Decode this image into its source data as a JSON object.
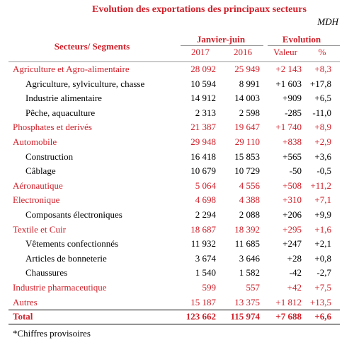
{
  "header": {
    "title": "Evolution des exportations des principaux secteurs",
    "unit": "MDH",
    "sector_label": "Secteurs/ Segments",
    "period": "Janvier-juin",
    "evolution": "Evolution",
    "columns": [
      "2017",
      "2016",
      "Valeur",
      "%"
    ]
  },
  "table": {
    "rows": [
      {
        "kind": "sector",
        "cells": [
          "Agriculture et Agro-alimentaire",
          "28 092",
          "25 949",
          "+2 143",
          "+8,3"
        ]
      },
      {
        "kind": "segment",
        "cells": [
          "Agriculture, sylviculture, chasse",
          "10 594",
          "8 991",
          "+1 603",
          "+17,8"
        ]
      },
      {
        "kind": "segment",
        "cells": [
          "Industrie alimentaire",
          "14 912",
          "14 003",
          "+909",
          "+6,5"
        ]
      },
      {
        "kind": "segment",
        "cells": [
          "Pêche, aquaculture",
          "2 313",
          "2 598",
          "-285",
          "-11,0"
        ]
      },
      {
        "kind": "sector",
        "cells": [
          "Phosphates et derivés",
          "21 387",
          "19 647",
          "+1 740",
          "+8,9"
        ]
      },
      {
        "kind": "sector",
        "cells": [
          "Automobile",
          "29 948",
          "29 110",
          "+838",
          "+2,9"
        ]
      },
      {
        "kind": "segment",
        "cells": [
          "Construction",
          "16 418",
          "15 853",
          "+565",
          "+3,6"
        ]
      },
      {
        "kind": "segment",
        "cells": [
          "Câblage",
          "10 679",
          "10 729",
          "-50",
          "-0,5"
        ]
      },
      {
        "kind": "sector",
        "cells": [
          "Aéronautique",
          "5 064",
          "4 556",
          "+508",
          "+11,2"
        ]
      },
      {
        "kind": "sector",
        "cells": [
          "Electronique",
          "4 698",
          "4 388",
          "+310",
          "+7,1"
        ]
      },
      {
        "kind": "segment",
        "cells": [
          "Composants électroniques",
          "2 294",
          "2 088",
          "+206",
          "+9,9"
        ]
      },
      {
        "kind": "sector",
        "cells": [
          "Textile et Cuir",
          "18 687",
          "18 392",
          "+295",
          "+1,6"
        ]
      },
      {
        "kind": "segment",
        "cells": [
          "Vêtements confectionnés",
          "11 932",
          "11 685",
          "+247",
          "+2,1"
        ]
      },
      {
        "kind": "segment",
        "cells": [
          "Articles de bonneterie",
          "3 674",
          "3 646",
          "+28",
          "+0,8"
        ]
      },
      {
        "kind": "segment",
        "cells": [
          "Chaussures",
          "1 540",
          "1 582",
          "-42",
          "-2,7"
        ]
      },
      {
        "kind": "sector",
        "cells": [
          "Industrie pharmaceutique",
          "599",
          "557",
          "+42",
          "+7,5"
        ]
      },
      {
        "kind": "sector",
        "cells": [
          "Autres",
          "15 187",
          "13 375",
          "+1 812",
          "+13,5"
        ]
      },
      {
        "kind": "total",
        "cells": [
          "Total",
          "123 662",
          "115 974",
          "+7 688",
          "+6,6"
        ]
      }
    ]
  },
  "footnote": "*Chiffres provisoires"
}
